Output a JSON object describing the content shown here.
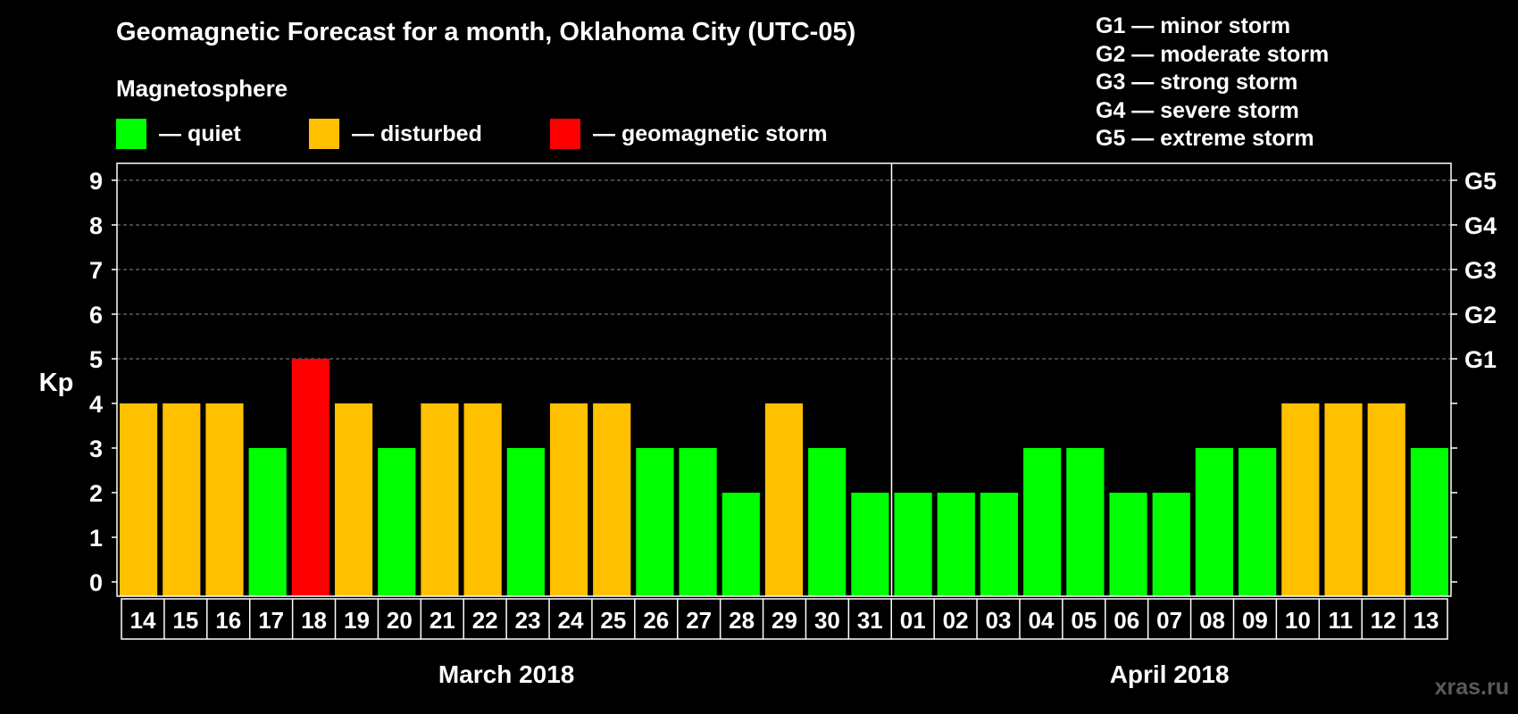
{
  "title": "Geomagnetic Forecast for a month, Oklahoma City (UTC-05)",
  "subtitle": "Magnetosphere",
  "legend": [
    {
      "key": "quiet",
      "label": "— quiet",
      "color": "#00ff00"
    },
    {
      "key": "disturbed",
      "label": "— disturbed",
      "color": "#ffc000"
    },
    {
      "key": "storm",
      "label": "— geomagnetic storm",
      "color": "#ff0000"
    }
  ],
  "storm_levels": [
    "G1 — minor storm",
    "G2 — moderate storm",
    "G3 — strong storm",
    "G4 — severe storm",
    "G5 — extreme storm"
  ],
  "watermark": "xras.ru",
  "chart_data": {
    "type": "bar",
    "ylabel": "Kp",
    "ylim": [
      0,
      9
    ],
    "yticks": [
      0,
      1,
      2,
      3,
      4,
      5,
      6,
      7,
      8,
      9
    ],
    "right_axis_labels": [
      {
        "kp": 5,
        "label": "G1"
      },
      {
        "kp": 6,
        "label": "G2"
      },
      {
        "kp": 7,
        "label": "G3"
      },
      {
        "kp": 8,
        "label": "G4"
      },
      {
        "kp": 9,
        "label": "G5"
      }
    ],
    "grid": "dashed horizontal lines at Kp 5 to 9",
    "categories": [
      "14",
      "15",
      "16",
      "17",
      "18",
      "19",
      "20",
      "21",
      "22",
      "23",
      "24",
      "25",
      "26",
      "27",
      "28",
      "29",
      "30",
      "31",
      "01",
      "02",
      "03",
      "04",
      "05",
      "06",
      "07",
      "08",
      "09",
      "10",
      "11",
      "12",
      "13"
    ],
    "values": [
      4,
      4,
      4,
      3,
      5,
      4,
      3,
      4,
      4,
      3,
      4,
      4,
      3,
      3,
      2,
      4,
      3,
      2,
      2,
      2,
      2,
      3,
      3,
      2,
      2,
      3,
      3,
      4,
      4,
      4,
      3
    ],
    "status": [
      "disturbed",
      "disturbed",
      "disturbed",
      "quiet",
      "storm",
      "disturbed",
      "quiet",
      "disturbed",
      "disturbed",
      "quiet",
      "disturbed",
      "disturbed",
      "quiet",
      "quiet",
      "quiet",
      "disturbed",
      "quiet",
      "quiet",
      "quiet",
      "quiet",
      "quiet",
      "quiet",
      "quiet",
      "quiet",
      "quiet",
      "quiet",
      "quiet",
      "disturbed",
      "disturbed",
      "disturbed",
      "quiet"
    ],
    "months": [
      {
        "label": "March 2018",
        "first_index": 0,
        "last_index": 17
      },
      {
        "label": "April 2018",
        "first_index": 18,
        "last_index": 30
      }
    ]
  }
}
